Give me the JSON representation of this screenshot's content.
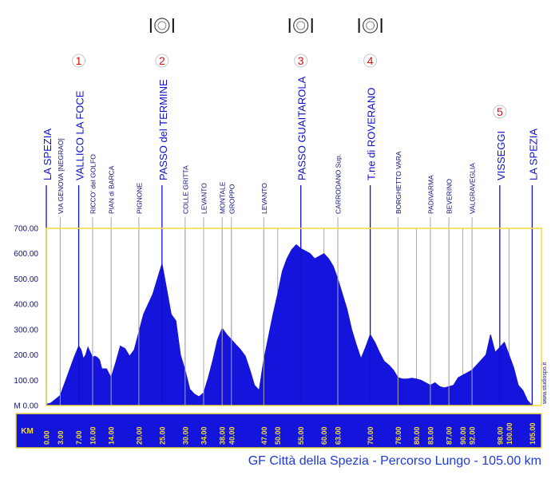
{
  "chart_data": {
    "type": "area",
    "title": "GF Città della Spezia - Percorso Lungo - 105.00 km",
    "xlabel": "KM",
    "ylabel": "M",
    "xlim": [
      0,
      107
    ],
    "ylim": [
      0,
      700
    ],
    "y_ticks": [
      "M 0.00",
      "100.00",
      "200.00",
      "300.00",
      "400.00",
      "500.00",
      "600.00",
      "700.00"
    ],
    "y_tick_values": [
      0,
      100,
      200,
      300,
      400,
      500,
      600,
      700
    ],
    "x_ticks": [
      {
        "km": 0,
        "label": "0.00"
      },
      {
        "km": 3,
        "label": "3.00"
      },
      {
        "km": 7,
        "label": "7.00"
      },
      {
        "km": 10,
        "label": "10.00"
      },
      {
        "km": 14,
        "label": "14.00"
      },
      {
        "km": 20,
        "label": "20.00"
      },
      {
        "km": 25,
        "label": "25.00"
      },
      {
        "km": 30,
        "label": "30.00"
      },
      {
        "km": 34,
        "label": "34.00"
      },
      {
        "km": 38,
        "label": "38.00"
      },
      {
        "km": 40,
        "label": "40.00"
      },
      {
        "km": 47,
        "label": "47.00"
      },
      {
        "km": 50,
        "label": "50.00"
      },
      {
        "km": 55,
        "label": "55.00"
      },
      {
        "km": 60,
        "label": "60.00"
      },
      {
        "km": 63,
        "label": "63.00"
      },
      {
        "km": 70,
        "label": "70.00"
      },
      {
        "km": 76,
        "label": "76.00"
      },
      {
        "km": 80,
        "label": "80.00"
      },
      {
        "km": 83,
        "label": "83.00"
      },
      {
        "km": 87,
        "label": "87.00"
      },
      {
        "km": 90,
        "label": "90.00"
      },
      {
        "km": 92,
        "label": "92.00"
      },
      {
        "km": 98,
        "label": "98.00"
      },
      {
        "km": 100,
        "label": "100.00"
      },
      {
        "km": 105,
        "label": "105.00"
      }
    ],
    "grid_km": [
      0,
      3,
      7,
      10,
      14,
      20,
      25,
      30,
      34,
      38,
      40,
      47,
      50,
      55,
      60,
      63,
      70,
      76,
      80,
      83,
      87,
      90,
      92,
      98,
      100,
      105
    ],
    "profile": {
      "x": [
        0,
        1,
        2,
        3,
        4,
        5,
        6,
        7,
        7.5,
        8,
        8.5,
        9,
        10,
        10.5,
        11,
        11.5,
        12,
        13,
        14,
        15,
        16,
        17,
        18,
        19,
        20,
        21,
        22,
        23,
        24,
        25,
        26,
        27,
        28,
        29,
        30,
        31,
        32,
        33,
        34,
        35,
        36,
        37,
        38,
        39,
        40,
        41,
        42,
        43,
        44,
        45,
        46,
        47,
        48,
        49,
        50,
        51,
        52,
        53,
        54,
        55,
        56,
        57,
        58,
        59,
        60,
        61,
        62,
        63,
        64,
        65,
        66,
        67,
        68,
        69,
        70,
        71,
        72,
        73,
        74,
        75,
        76,
        77,
        78,
        79,
        80,
        81,
        82,
        83,
        84,
        85,
        86,
        87,
        88,
        89,
        90,
        91,
        92,
        93,
        94,
        95,
        96,
        97,
        98,
        99,
        100,
        101,
        102,
        103,
        104,
        105
      ],
      "y": [
        5,
        10,
        25,
        40,
        90,
        140,
        190,
        235,
        220,
        185,
        200,
        230,
        190,
        195,
        190,
        180,
        145,
        145,
        110,
        170,
        235,
        225,
        195,
        220,
        290,
        360,
        400,
        440,
        500,
        560,
        460,
        360,
        335,
        200,
        140,
        65,
        45,
        35,
        50,
        110,
        180,
        260,
        305,
        280,
        260,
        240,
        220,
        195,
        140,
        80,
        60,
        180,
        270,
        360,
        440,
        530,
        580,
        615,
        635,
        620,
        610,
        600,
        580,
        590,
        600,
        580,
        550,
        500,
        440,
        380,
        300,
        240,
        185,
        230,
        280,
        250,
        210,
        175,
        160,
        140,
        110,
        105,
        105,
        108,
        105,
        100,
        90,
        80,
        90,
        75,
        70,
        75,
        80,
        110,
        120,
        130,
        140,
        160,
        180,
        200,
        280,
        210,
        230,
        250,
        200,
        150,
        80,
        60,
        20,
        0
      ]
    },
    "fill_color": "#1414dc",
    "frame_color": "#f0dc3c",
    "xaxis_band_color": "#1414dc",
    "xaxis_label_color": "#f0dc3c",
    "major_line_color": "#1010d0",
    "minor_line_color": "#a8a8a8",
    "title_color": "#1e3ad8",
    "marker_color": "#e01010",
    "locations": [
      {
        "km": 0,
        "name": "LA SPEZIA",
        "kind": "major"
      },
      {
        "km": 3,
        "name": "VIA GENOVA [NEGRAO]",
        "kind": "minor"
      },
      {
        "km": 7,
        "name": "VALLICO LA FOCE",
        "kind": "major",
        "marker": "1"
      },
      {
        "km": 10,
        "name": "RICCO' del GOLFO",
        "kind": "minor"
      },
      {
        "km": 14,
        "name": "PIAN di BARCA",
        "kind": "minor"
      },
      {
        "km": 20,
        "name": "PIGNONE",
        "kind": "minor"
      },
      {
        "km": 25,
        "name": "PASSO del TERMINE",
        "kind": "major",
        "marker": "2",
        "food": true
      },
      {
        "km": 30,
        "name": "COLLE GRITTA",
        "kind": "minor"
      },
      {
        "km": 34,
        "name": "LEVANTO",
        "kind": "minor"
      },
      {
        "km": 38,
        "name": "MONTALE",
        "kind": "minor"
      },
      {
        "km": 40,
        "name": "GROPPO",
        "kind": "minor"
      },
      {
        "km": 47,
        "name": "LEVANTO",
        "kind": "minor"
      },
      {
        "km": 55,
        "name": "PASSO GUAITAROLA",
        "kind": "major",
        "marker": "3",
        "food": true
      },
      {
        "km": 63,
        "name": "CARRODANO Sup.",
        "kind": "minor"
      },
      {
        "km": 70,
        "name": "T.ne di ROVERANO",
        "kind": "major",
        "marker": "4",
        "food": true
      },
      {
        "km": 76,
        "name": "BORGHETTO VARA",
        "kind": "minor"
      },
      {
        "km": 83,
        "name": "PADIVARMA",
        "kind": "minor"
      },
      {
        "km": 87,
        "name": "BEVERINO",
        "kind": "minor"
      },
      {
        "km": 92,
        "name": "VALGRAVEGLIA",
        "kind": "minor"
      },
      {
        "km": 98,
        "name": "VISSEGGI",
        "kind": "major",
        "marker": "5"
      },
      {
        "km": 105,
        "name": "LA SPEZIA",
        "kind": "major"
      }
    ],
    "food_icon": "fork-plate-knife-icon",
    "watermark": "www.studiospo.it"
  }
}
